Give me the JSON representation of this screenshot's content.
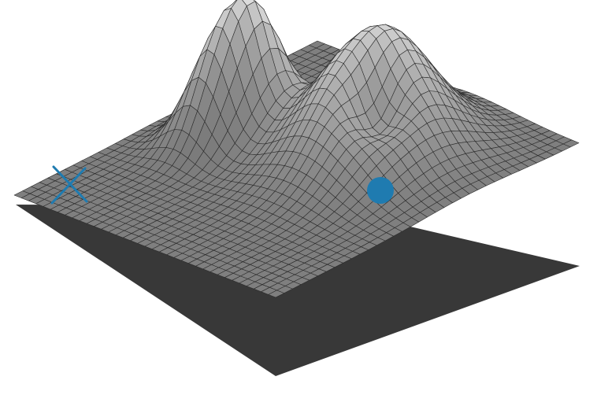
{
  "figure": {
    "colors": {
      "background": "#ffffff",
      "base_plane": "#383838",
      "surface_light": "#dcdcdc",
      "surface_dark": "#6a6a6a",
      "mesh_line": "#2b2b2b",
      "marker": "#1f7bb0"
    },
    "markers": {
      "start": {
        "icon": "x-marker",
        "shape": "cross"
      },
      "goal": {
        "icon": "dot-marker",
        "shape": "filled-circle"
      }
    }
  }
}
